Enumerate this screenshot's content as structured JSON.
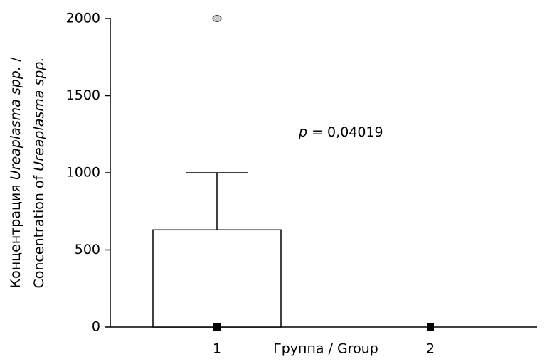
{
  "chart_data": {
    "type": "box",
    "categories": [
      "1",
      "2"
    ],
    "xlabel": "Группа / Group",
    "ylabel": [
      [
        {
          "text": "Концентрация "
        },
        {
          "text": "Ureaplasma spp.",
          "italic": true
        },
        {
          "text": " /"
        }
      ],
      [
        {
          "text": "Concentration of "
        },
        {
          "text": "Ureaplasma spp.",
          "italic": true
        }
      ]
    ],
    "annotation": [
      {
        "text": "p",
        "italic": true
      },
      {
        "text": " = 0,04019"
      }
    ],
    "q1": [
      0,
      0
    ],
    "q3": [
      630,
      0
    ],
    "median": [
      0,
      0
    ],
    "whisker_low": [
      0,
      0
    ],
    "whisker_high": [
      1000,
      0
    ],
    "outliers": [
      [
        2000
      ],
      []
    ],
    "ylim": [
      0,
      2000
    ],
    "yticks": [
      0,
      500,
      1000,
      1500,
      2000
    ],
    "box_color": "#ffffff",
    "outlier_color": "#c8c8c8"
  }
}
